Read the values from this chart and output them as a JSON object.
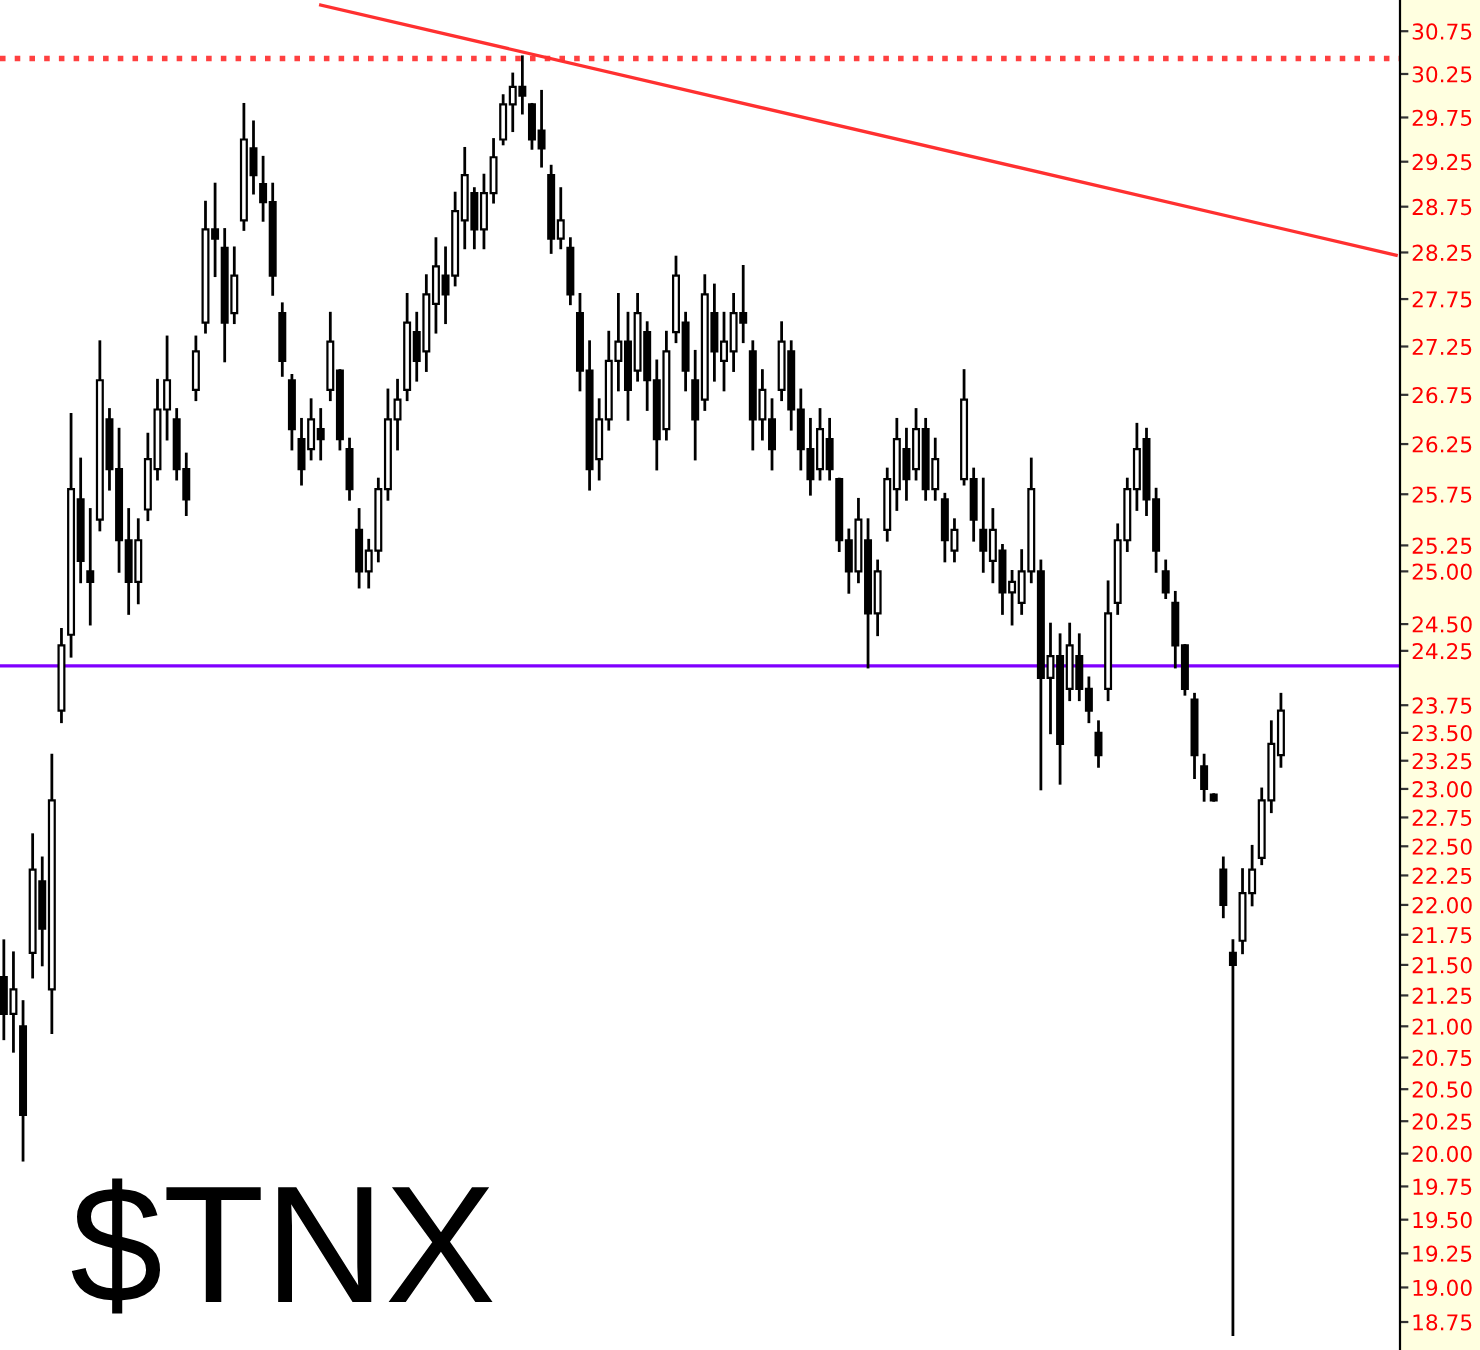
{
  "chart_data": {
    "type": "candlestick",
    "color": "#000000",
    "log": "y",
    "tick_labels": "y",
    "ylim": [
      18.55,
      31.12
    ],
    "yticks": [
      {
        "value": 30.75,
        "label": "30.75"
      },
      {
        "value": 30.25,
        "label": "30.25"
      },
      {
        "value": 29.75,
        "label": "29.75"
      },
      {
        "value": 29.25,
        "label": "29.25"
      },
      {
        "value": 28.75,
        "label": "28.75"
      },
      {
        "value": 28.25,
        "label": "28.25"
      },
      {
        "value": 27.75,
        "label": "27.75"
      },
      {
        "value": 27.25,
        "label": "27.25"
      },
      {
        "value": 26.75,
        "label": "26.75"
      },
      {
        "value": 26.25,
        "label": "26.25"
      },
      {
        "value": 25.75,
        "label": "25.75"
      },
      {
        "value": 25.25,
        "label": "25.25"
      },
      {
        "value": 25,
        "label": "25.00"
      },
      {
        "value": 24.5,
        "label": "24.50"
      },
      {
        "value": 24.25,
        "label": "24.25"
      },
      {
        "value": 23.75,
        "label": "23.75"
      },
      {
        "value": 23.5,
        "label": "23.50"
      },
      {
        "value": 23.25,
        "label": "23.25"
      },
      {
        "value": 23,
        "label": "23.00"
      },
      {
        "value": 22.75,
        "label": "22.75"
      },
      {
        "value": 22.5,
        "label": "22.50"
      },
      {
        "value": 22.25,
        "label": "22.25"
      },
      {
        "value": 22,
        "label": "22.00"
      },
      {
        "value": 21.75,
        "label": "21.75"
      },
      {
        "value": 21.5,
        "label": "21.50"
      },
      {
        "value": 21.25,
        "label": "21.25"
      },
      {
        "value": 21,
        "label": "21.00"
      },
      {
        "value": 20.75,
        "label": "20.75"
      },
      {
        "value": 20.5,
        "label": "20.50"
      },
      {
        "value": 20.25,
        "label": "20.25"
      },
      {
        "value": 20,
        "label": "20.00"
      },
      {
        "value": 19.75,
        "label": "19.75"
      },
      {
        "value": 19.5,
        "label": "19.50"
      },
      {
        "value": 19.25,
        "label": "19.25"
      },
      {
        "value": 19,
        "label": "19.00"
      },
      {
        "value": 18.75,
        "label": "18.75"
      }
    ],
    "ref_lines": [
      {
        "axis": "y",
        "value": 30.43,
        "color": "#ff4040",
        "line_style": "dotted"
      },
      {
        "axis": "y",
        "value": 24.11,
        "color": "#8000ff",
        "line_style": "solid"
      }
    ],
    "annotations": [
      "$TNX"
    ],
    "series": [
      {
        "type": "line",
        "color": "#ff3030",
        "values": [
          null,
          null,
          null,
          null,
          null,
          null,
          null,
          null,
          null,
          null,
          null,
          null,
          null,
          null,
          null,
          null,
          null,
          null,
          null,
          null,
          null,
          null,
          null,
          null,
          null,
          null,
          null,
          null,
          null,
          null,
          null,
          null,
          null,
          31.06,
          null,
          null,
          null,
          null,
          null,
          null,
          null,
          null,
          null,
          null,
          null,
          null,
          null,
          null,
          null,
          null,
          null,
          null,
          null,
          null,
          null,
          null,
          null,
          null,
          null,
          null,
          null,
          null,
          null,
          null,
          null,
          null,
          null,
          null,
          null,
          null,
          null,
          null,
          null,
          null,
          null,
          null,
          null,
          null,
          null,
          null,
          null,
          null,
          null,
          null,
          null,
          null,
          null,
          null,
          null,
          null,
          null,
          null,
          null,
          null,
          null,
          null,
          null,
          null,
          null,
          null,
          null,
          null,
          null,
          null,
          null,
          null,
          null,
          null,
          null,
          null,
          null,
          null,
          null,
          null,
          null,
          null,
          null,
          null,
          null,
          null,
          null,
          null,
          null,
          null,
          null,
          null,
          null,
          null,
          null,
          null,
          null,
          null,
          null,
          null,
          null,
          null,
          null,
          null,
          null,
          null,
          null,
          null,
          null,
          null,
          null,
          28.22
        ]
      }
    ],
    "categories": [
      null,
      null,
      null,
      null,
      null,
      null,
      null,
      null,
      null,
      null,
      null,
      null,
      null,
      null,
      null,
      null,
      null,
      null,
      null,
      null,
      null,
      null,
      null,
      null,
      null,
      null,
      null,
      null,
      null,
      null,
      null,
      null,
      null,
      null,
      null,
      null,
      null,
      null,
      null,
      null,
      null,
      null,
      null,
      null,
      null,
      null,
      null,
      null,
      null,
      null,
      null,
      null,
      null,
      null,
      null,
      null,
      null,
      null,
      null,
      null,
      null,
      null,
      null,
      null,
      null,
      null,
      null,
      null,
      null,
      null,
      null,
      null,
      null,
      null,
      null,
      null,
      null,
      null,
      null,
      null,
      null,
      null,
      null,
      null,
      null,
      null,
      null,
      null,
      null,
      null,
      null,
      null,
      null,
      null,
      null,
      null,
      null,
      null,
      null,
      null,
      null,
      null,
      null,
      null,
      null,
      null,
      null,
      null,
      null,
      null,
      null,
      null,
      null,
      null,
      null,
      null,
      null,
      null,
      null,
      null,
      null,
      null,
      null,
      null,
      null,
      null,
      null,
      null,
      null,
      null,
      null,
      null,
      null,
      null,
      null,
      null,
      null,
      null,
      null,
      null,
      null,
      null,
      null,
      null,
      null,
      null
    ],
    "ohlc": [
      [
        21.4,
        21.7,
        20.9,
        21.1
      ],
      [
        21.1,
        21.6,
        20.8,
        21.3
      ],
      [
        21.0,
        21.2,
        19.95,
        20.3
      ],
      [
        21.6,
        22.6,
        21.4,
        22.3
      ],
      [
        22.2,
        22.4,
        21.5,
        21.8
      ],
      [
        21.3,
        23.3,
        20.95,
        22.9
      ],
      [
        23.7,
        24.45,
        23.6,
        24.3
      ],
      [
        24.4,
        26.55,
        24.2,
        25.8
      ],
      [
        25.7,
        26.1,
        24.9,
        25.1
      ],
      [
        25.0,
        25.6,
        24.5,
        24.9
      ],
      [
        25.5,
        27.3,
        25.4,
        26.9
      ],
      [
        26.5,
        26.6,
        25.8,
        26.0
      ],
      [
        26.0,
        26.4,
        25.0,
        25.3
      ],
      [
        25.3,
        25.6,
        24.6,
        24.9
      ],
      [
        24.9,
        25.5,
        24.7,
        25.3
      ],
      [
        25.6,
        26.35,
        25.5,
        26.1
      ],
      [
        26.0,
        26.9,
        25.9,
        26.6
      ],
      [
        26.6,
        27.35,
        26.3,
        26.9
      ],
      [
        26.5,
        26.6,
        25.9,
        26.0
      ],
      [
        26.0,
        26.15,
        25.55,
        25.7
      ],
      [
        26.8,
        27.35,
        26.7,
        27.2
      ],
      [
        27.5,
        28.8,
        27.4,
        28.5
      ],
      [
        28.5,
        29.0,
        28.0,
        28.4
      ],
      [
        28.3,
        28.5,
        27.1,
        27.5
      ],
      [
        27.6,
        28.3,
        27.5,
        28.0
      ],
      [
        28.6,
        29.9,
        28.5,
        29.5
      ],
      [
        29.4,
        29.7,
        28.9,
        29.1
      ],
      [
        29.0,
        29.3,
        28.6,
        28.8
      ],
      [
        28.8,
        29.0,
        27.8,
        28.0
      ],
      [
        27.6,
        27.7,
        26.95,
        27.1
      ],
      [
        26.9,
        26.95,
        26.2,
        26.4
      ],
      [
        26.3,
        26.5,
        25.85,
        26.0
      ],
      [
        26.2,
        26.7,
        26.1,
        26.5
      ],
      [
        26.4,
        26.6,
        26.1,
        26.3
      ],
      [
        26.8,
        27.6,
        26.7,
        27.3
      ],
      [
        27.0,
        27.0,
        26.2,
        26.3
      ],
      [
        26.2,
        26.3,
        25.7,
        25.8
      ],
      [
        25.4,
        25.6,
        24.85,
        25.0
      ],
      [
        25.0,
        25.3,
        24.85,
        25.2
      ],
      [
        25.2,
        25.9,
        25.1,
        25.8
      ],
      [
        25.8,
        26.8,
        25.7,
        26.5
      ],
      [
        26.5,
        26.9,
        26.2,
        26.7
      ],
      [
        26.8,
        27.8,
        26.7,
        27.5
      ],
      [
        27.4,
        27.6,
        26.9,
        27.1
      ],
      [
        27.2,
        28.0,
        27.0,
        27.8
      ],
      [
        27.7,
        28.4,
        27.4,
        28.1
      ],
      [
        28.0,
        28.3,
        27.5,
        27.8
      ],
      [
        28.0,
        28.9,
        27.9,
        28.7
      ],
      [
        28.6,
        29.4,
        28.3,
        29.1
      ],
      [
        28.9,
        28.95,
        28.3,
        28.5
      ],
      [
        28.5,
        29.1,
        28.3,
        28.9
      ],
      [
        28.9,
        29.5,
        28.8,
        29.3
      ],
      [
        29.5,
        30.0,
        29.45,
        29.9
      ],
      [
        29.9,
        30.25,
        29.6,
        30.1
      ],
      [
        30.1,
        30.45,
        29.8,
        30.0
      ],
      [
        29.9,
        29.9,
        29.4,
        29.5
      ],
      [
        29.6,
        30.05,
        29.2,
        29.4
      ],
      [
        29.1,
        29.2,
        28.25,
        28.4
      ],
      [
        28.4,
        28.95,
        28.3,
        28.6
      ],
      [
        28.3,
        28.4,
        27.7,
        27.8
      ],
      [
        27.6,
        27.8,
        26.8,
        27.0
      ],
      [
        27.0,
        27.3,
        25.8,
        26.0
      ],
      [
        26.1,
        26.7,
        25.9,
        26.5
      ],
      [
        26.5,
        27.4,
        26.4,
        27.1
      ],
      [
        27.1,
        27.8,
        26.8,
        27.3
      ],
      [
        27.3,
        27.6,
        26.5,
        26.8
      ],
      [
        27.0,
        27.8,
        26.9,
        27.6
      ],
      [
        27.4,
        27.5,
        26.6,
        26.9
      ],
      [
        26.9,
        27.1,
        26.0,
        26.3
      ],
      [
        26.4,
        27.4,
        26.3,
        27.2
      ],
      [
        27.4,
        28.2,
        27.3,
        28.0
      ],
      [
        27.5,
        27.6,
        26.8,
        27.0
      ],
      [
        26.9,
        27.2,
        26.1,
        26.5
      ],
      [
        26.7,
        28.0,
        26.6,
        27.8
      ],
      [
        27.6,
        27.9,
        26.9,
        27.2
      ],
      [
        27.1,
        27.6,
        26.8,
        27.3
      ],
      [
        27.2,
        27.8,
        27.0,
        27.6
      ],
      [
        27.6,
        28.1,
        27.3,
        27.5
      ],
      [
        27.2,
        27.3,
        26.2,
        26.5
      ],
      [
        26.5,
        27.0,
        26.3,
        26.8
      ],
      [
        26.5,
        26.7,
        26.0,
        26.2
      ],
      [
        26.8,
        27.5,
        26.7,
        27.3
      ],
      [
        27.2,
        27.3,
        26.4,
        26.6
      ],
      [
        26.6,
        26.8,
        26.0,
        26.2
      ],
      [
        26.2,
        26.5,
        25.75,
        25.9
      ],
      [
        26.0,
        26.6,
        25.9,
        26.4
      ],
      [
        26.3,
        26.5,
        25.9,
        26.0
      ],
      [
        25.9,
        25.9,
        25.2,
        25.3
      ],
      [
        25.3,
        25.4,
        24.8,
        25.0
      ],
      [
        25.0,
        25.7,
        24.9,
        25.5
      ],
      [
        25.3,
        25.5,
        24.1,
        24.6
      ],
      [
        24.6,
        25.1,
        24.4,
        25.0
      ],
      [
        25.4,
        26.0,
        25.3,
        25.9
      ],
      [
        25.8,
        26.5,
        25.6,
        26.3
      ],
      [
        26.2,
        26.4,
        25.7,
        25.9
      ],
      [
        26.0,
        26.6,
        25.9,
        26.4
      ],
      [
        26.4,
        26.5,
        25.7,
        25.8
      ],
      [
        25.8,
        26.3,
        25.7,
        26.1
      ],
      [
        25.7,
        25.75,
        25.1,
        25.3
      ],
      [
        25.2,
        25.5,
        25.1,
        25.4
      ],
      [
        25.9,
        27.0,
        25.85,
        26.7
      ],
      [
        25.9,
        26.0,
        25.3,
        25.5
      ],
      [
        25.4,
        25.9,
        25.0,
        25.2
      ],
      [
        25.1,
        25.6,
        24.9,
        25.4
      ],
      [
        25.2,
        25.25,
        24.6,
        24.8
      ],
      [
        24.8,
        25.0,
        24.5,
        24.9
      ],
      [
        24.7,
        25.2,
        24.6,
        25.0
      ],
      [
        25.0,
        26.1,
        24.9,
        25.8
      ],
      [
        25.0,
        25.1,
        23.0,
        24.0
      ],
      [
        24.0,
        24.5,
        23.5,
        24.2
      ],
      [
        24.2,
        24.4,
        23.05,
        23.4
      ],
      [
        23.9,
        24.5,
        23.8,
        24.3
      ],
      [
        24.2,
        24.4,
        23.8,
        23.9
      ],
      [
        23.9,
        24.0,
        23.6,
        23.7
      ],
      [
        23.5,
        23.6,
        23.2,
        23.3
      ],
      [
        23.9,
        24.9,
        23.8,
        24.6
      ],
      [
        24.7,
        25.45,
        24.6,
        25.3
      ],
      [
        25.3,
        25.9,
        25.2,
        25.8
      ],
      [
        25.8,
        26.45,
        25.6,
        26.2
      ],
      [
        26.3,
        26.4,
        25.55,
        25.7
      ],
      [
        25.7,
        25.8,
        25.0,
        25.2
      ],
      [
        25.0,
        25.1,
        24.75,
        24.8
      ],
      [
        24.7,
        24.8,
        24.1,
        24.3
      ],
      [
        24.3,
        24.3,
        23.85,
        23.9
      ],
      [
        23.8,
        23.85,
        23.1,
        23.3
      ],
      [
        23.2,
        23.3,
        22.9,
        23.0
      ],
      [
        22.95,
        22.95,
        22.9,
        22.9
      ],
      [
        22.3,
        22.4,
        21.9,
        22.0
      ],
      [
        21.6,
        21.7,
        18.66,
        21.5
      ],
      [
        21.7,
        22.3,
        21.6,
        22.1
      ],
      [
        22.1,
        22.5,
        22.0,
        22.3
      ],
      [
        22.4,
        23.0,
        22.35,
        22.9
      ],
      [
        22.9,
        23.6,
        22.8,
        23.4
      ],
      [
        23.3,
        23.85,
        23.2,
        23.7
      ],
      null,
      null,
      null,
      null,
      null,
      null,
      null,
      null,
      null,
      null,
      null,
      null
    ]
  }
}
